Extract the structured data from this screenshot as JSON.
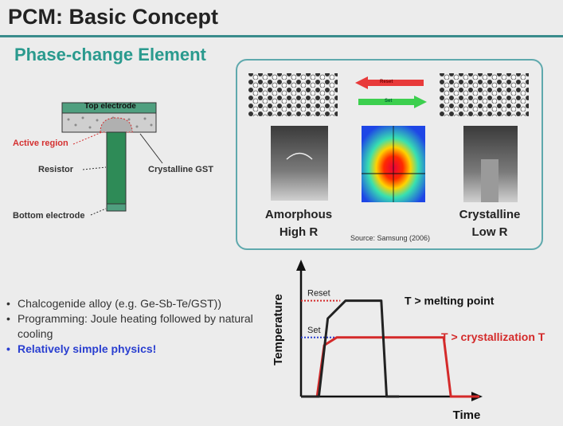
{
  "slide": {
    "title": "PCM: Basic Concept",
    "subtitle": "Phase-change Element"
  },
  "device_diagram": {
    "top_electrode": "Top electrode",
    "active_region": "Active region",
    "resistor": "Resistor",
    "crystalline_gst": "Crystalline GST",
    "bottom_electrode": "Bottom electrode"
  },
  "phase_panel": {
    "reset_label": "Reset",
    "set_label": "Set",
    "amorphous_label": "Amorphous",
    "amorphous_resistance": "High R",
    "crystalline_label": "Crystalline",
    "crystalline_resistance": "Low R",
    "source": "Source: Samsung (2006)"
  },
  "bullets": [
    "Chalcogenide alloy (e.g. Ge-Sb-Te/GST))",
    "Programming: Joule heating followed by natural cooling",
    "Relatively simple physics!"
  ],
  "colors": {
    "accent": "#2a9a8e",
    "rule": "#3a8c8c",
    "reset_curve": "#222222",
    "set_curve": "#d42a2a",
    "emphasis": "#2a3fd0"
  },
  "chart_data": {
    "type": "line",
    "xlabel": "Time",
    "ylabel": "Temperature",
    "series": [
      {
        "name": "Reset",
        "annotation": "T > melting point",
        "color": "#222222",
        "x": [
          0,
          1.0,
          1.5,
          2.5,
          4.5,
          4.8,
          5.5
        ],
        "y": [
          0,
          0,
          7,
          8.6,
          8.6,
          0,
          0
        ]
      },
      {
        "name": "Set",
        "annotation": "T > crystallization T",
        "color": "#d42a2a",
        "x": [
          0,
          0.9,
          1.3,
          2.0,
          8.0,
          8.4,
          10
        ],
        "y": [
          0,
          0,
          4.6,
          5.3,
          5.3,
          0,
          0
        ]
      }
    ],
    "thresholds": [
      {
        "name": "Reset",
        "y": 8.6,
        "color": "#d42a2a"
      },
      {
        "name": "Set",
        "y": 5.3,
        "color": "#2a3fd0"
      }
    ],
    "xlim": [
      0,
      10
    ],
    "ylim": [
      0,
      12
    ]
  }
}
